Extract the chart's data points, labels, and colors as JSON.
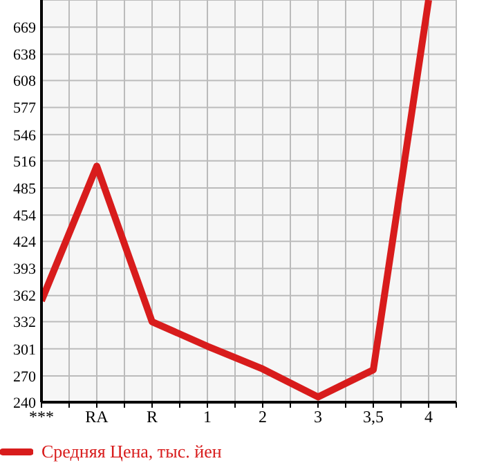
{
  "chart_data": {
    "type": "line",
    "categories": [
      "***",
      "RA",
      "R",
      "1",
      "2",
      "3",
      "3,5",
      "4"
    ],
    "series": [
      {
        "name": "Средняя Цена, тыс. йен",
        "color": "#d81c1c",
        "values": [
          356,
          510,
          332,
          304,
          278,
          246,
          277,
          700
        ]
      }
    ],
    "ylim": [
      240,
      700
    ],
    "yticks": [
      240,
      270,
      301,
      332,
      362,
      393,
      424,
      454,
      485,
      516,
      546,
      577,
      608,
      638,
      669
    ],
    "grid": true,
    "legend": "bottom left",
    "marker": "none",
    "line_style": "solid"
  }
}
